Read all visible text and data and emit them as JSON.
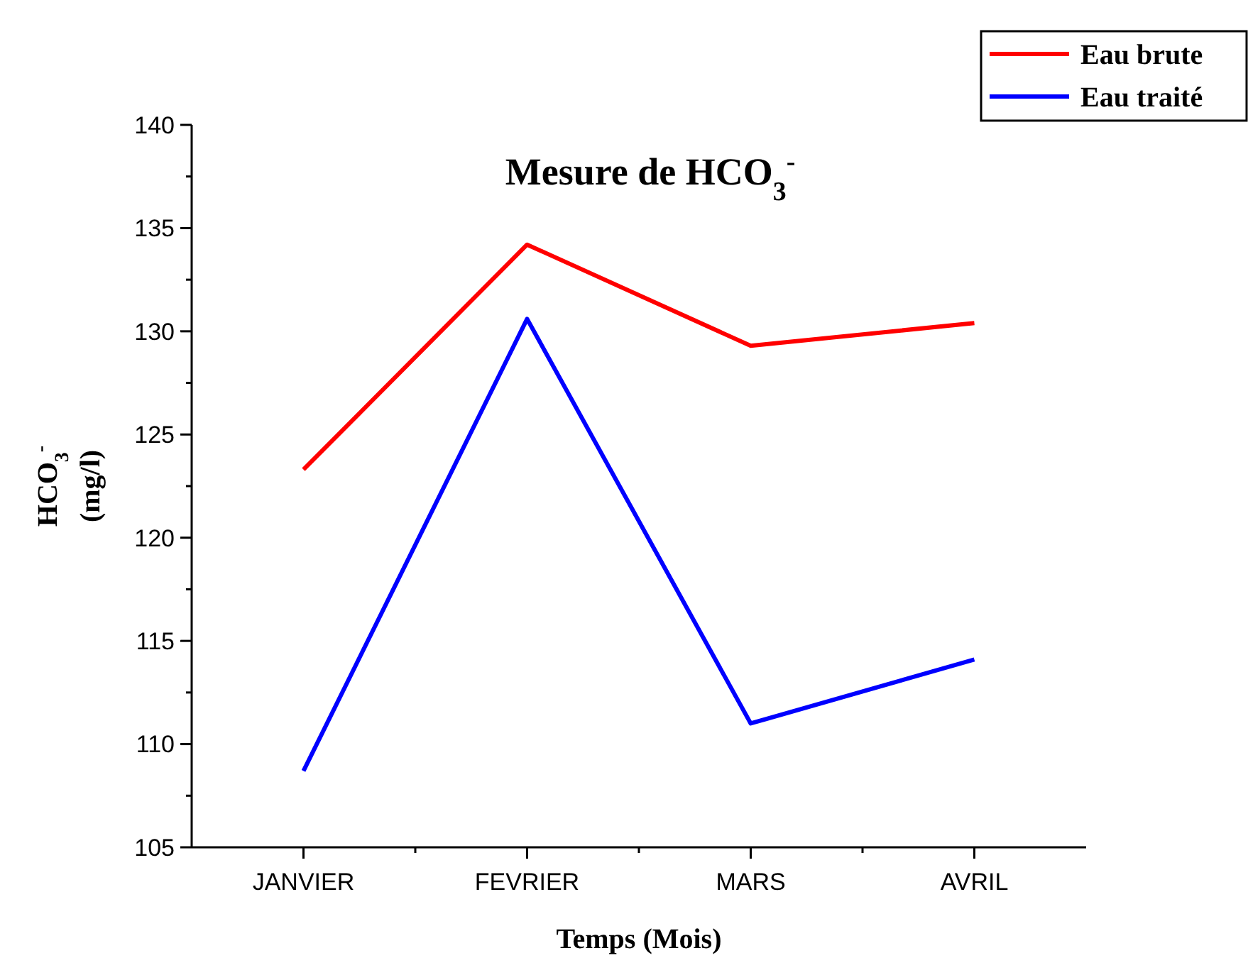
{
  "chart_data": {
    "type": "line",
    "title": "Mesure de HCO$_{3}$$^{-}$",
    "xlabel": "Temps (Mois)",
    "ylabel": "HCO$_{3}$$^{-}$ (mg/l)",
    "categories": [
      "JANVIER",
      "FEVRIER",
      "MARS",
      "AVRIL"
    ],
    "series": [
      {
        "name": "Eau brute",
        "color": "#ff0000",
        "values": [
          123.3,
          134.2,
          129.3,
          130.4
        ]
      },
      {
        "name": "Eau traité",
        "color": "#0000ff",
        "values": [
          108.7,
          130.6,
          111.0,
          114.1
        ]
      }
    ],
    "ylim": [
      105,
      140
    ],
    "yticks": [
      105,
      110,
      115,
      120,
      125,
      130,
      135,
      140
    ],
    "grid": false,
    "legend": "top right",
    "marker": "none",
    "line_style": "solid"
  }
}
